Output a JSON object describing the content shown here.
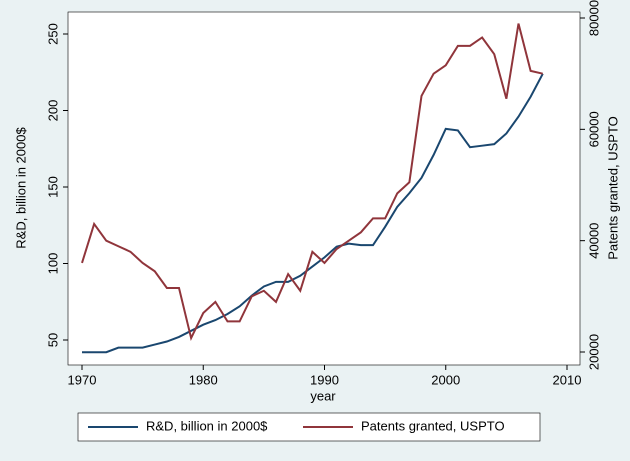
{
  "chart_data": {
    "type": "line",
    "x_label": "year",
    "y_label": "R&D, billion in 2000$",
    "y2_label": "Patents granted, USPTO",
    "x": [
      1970,
      1971,
      1972,
      1973,
      1974,
      1975,
      1976,
      1977,
      1978,
      1979,
      1980,
      1981,
      1982,
      1983,
      1984,
      1985,
      1986,
      1987,
      1988,
      1989,
      1990,
      1991,
      1992,
      1993,
      1994,
      1995,
      1996,
      1997,
      1998,
      1999,
      2000,
      2001,
      2002,
      2003,
      2004,
      2005,
      2006,
      2007,
      2008
    ],
    "series": [
      {
        "name": "R&D, billion in 2000$",
        "color": "#1a476f",
        "axis": "y",
        "values": [
          42,
          42,
          42,
          45,
          45,
          45,
          47,
          49,
          52,
          56,
          60,
          63,
          67,
          72,
          79,
          85,
          88,
          88,
          92,
          98,
          104,
          111,
          113,
          112,
          112,
          124,
          137,
          146,
          156,
          171,
          188,
          187,
          176,
          177,
          178,
          185,
          196,
          209,
          224
        ]
      },
      {
        "name": "Patents granted, USPTO",
        "color": "#90353b",
        "axis": "y2",
        "values": [
          36000,
          43000,
          40000,
          39000,
          38000,
          36000,
          34500,
          31500,
          31500,
          22500,
          27000,
          29000,
          25500,
          25500,
          30000,
          31000,
          29000,
          34000,
          31000,
          38000,
          36000,
          38500,
          40000,
          41500,
          44000,
          44000,
          48500,
          50500,
          66000,
          70000,
          71500,
          75000,
          75000,
          76500,
          73500,
          65500,
          79000,
          70500,
          70000
        ]
      }
    ],
    "xlim": [
      1970,
      2010
    ],
    "xticks": [
      1970,
      1980,
      1990,
      2000,
      2010
    ],
    "ylim": [
      50,
      250
    ],
    "yticks": [
      50,
      100,
      150,
      200,
      250
    ],
    "y2lim": [
      20000,
      80000
    ],
    "y2ticks": [
      20000,
      40000,
      60000,
      80000
    ],
    "grid": false,
    "legend": "bottom"
  }
}
